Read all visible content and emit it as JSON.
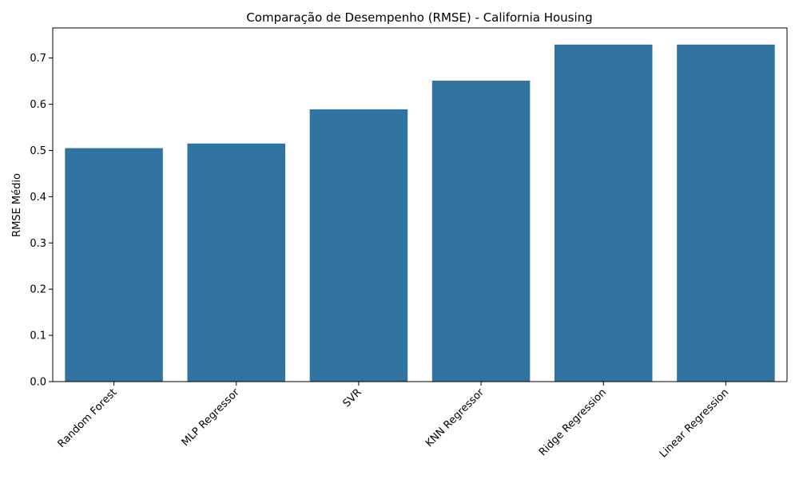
{
  "chart_data": {
    "type": "bar",
    "title": "Comparação de Desempenho (RMSE) - California Housing",
    "xlabel": "",
    "ylabel": "RMSE Médio",
    "categories": [
      "Random Forest",
      "MLP Regressor",
      "SVR",
      "KNN Regressor",
      "Ridge Regression",
      "Linear Regression"
    ],
    "values": [
      0.505,
      0.515,
      0.589,
      0.651,
      0.729,
      0.729
    ],
    "ylim": [
      0,
      0.765
    ],
    "yticks": [
      0.0,
      0.1,
      0.2,
      0.3,
      0.4,
      0.5,
      0.6,
      0.7
    ],
    "ytick_labels": [
      "0.0",
      "0.1",
      "0.2",
      "0.3",
      "0.4",
      "0.5",
      "0.6",
      "0.7"
    ],
    "bar_color": "#3274a1",
    "grid": false,
    "legend": false
  }
}
